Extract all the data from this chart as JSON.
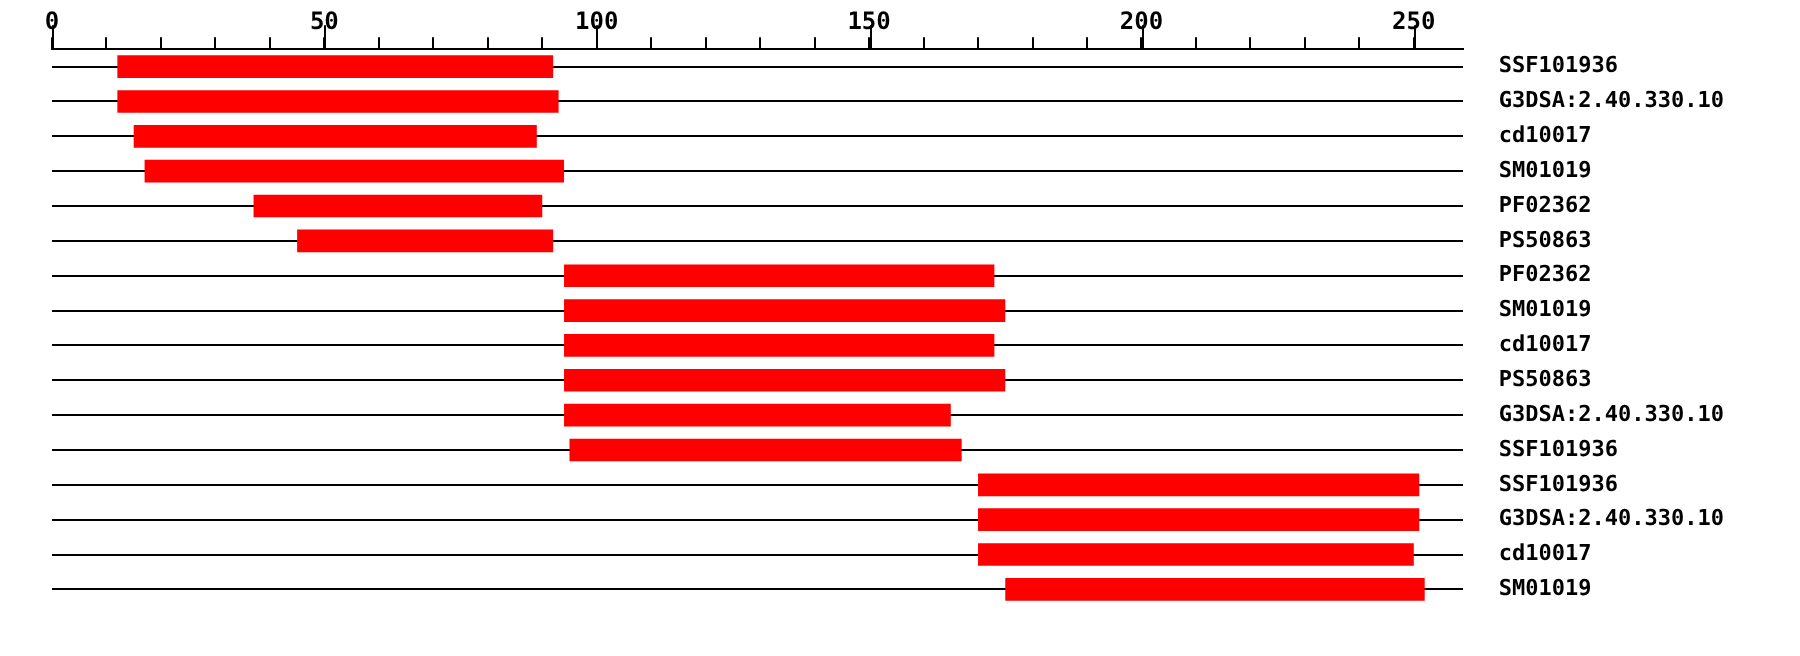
{
  "chart_data": {
    "type": "bar",
    "orientation": "horizontal",
    "categories": [
      "SSF101936",
      "G3DSA:2.40.330.10",
      "cd10017",
      "SM01019",
      "PF02362",
      "PS50863",
      "PF02362",
      "SM01019",
      "cd10017",
      "PS50863",
      "G3DSA:2.40.330.10",
      "SSF101936",
      "SSF101936",
      "G3DSA:2.40.330.10",
      "cd10017",
      "SM01019"
    ],
    "base": [
      12,
      12,
      15,
      17,
      37,
      45,
      94,
      94,
      94,
      94,
      94,
      95,
      170,
      170,
      170,
      175
    ],
    "values": [
      80,
      81,
      74,
      77,
      53,
      47,
      79,
      81,
      79,
      81,
      71,
      72,
      81,
      81,
      80,
      77
    ],
    "color": "#ff0000",
    "xlim": [
      0,
      259
    ],
    "xticks": [
      0,
      {
        "value": 10,
        "label": null
      },
      {
        "value": 20,
        "label": null
      },
      {
        "value": 30,
        "label": null
      },
      {
        "value": 40,
        "label": null
      },
      50,
      {
        "value": 60,
        "label": null
      },
      {
        "value": 70,
        "label": null
      },
      {
        "value": 80,
        "label": null
      },
      {
        "value": 90,
        "label": null
      },
      100,
      {
        "value": 110,
        "label": null
      },
      {
        "value": 120,
        "label": null
      },
      {
        "value": 130,
        "label": null
      },
      {
        "value": 140,
        "label": null
      },
      150,
      {
        "value": 160,
        "label": null
      },
      {
        "value": 170,
        "label": null
      },
      {
        "value": 180,
        "label": null
      },
      {
        "value": 190,
        "label": null
      },
      200,
      {
        "value": 210,
        "label": null
      },
      {
        "value": 220,
        "label": null
      },
      {
        "value": 230,
        "label": null
      },
      {
        "value": 240,
        "label": null
      },
      250
    ],
    "grid": "y",
    "legend": false
  }
}
